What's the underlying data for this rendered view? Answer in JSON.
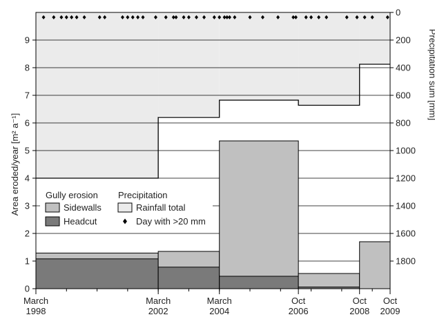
{
  "chart_data": {
    "type": "bar",
    "title": "",
    "x_axis": {
      "ticks": [
        {
          "date": "1998-03",
          "label": [
            "March",
            "1998"
          ]
        },
        {
          "date": "2002-03",
          "label": [
            "March",
            "2002"
          ]
        },
        {
          "date": "2004-03",
          "label": [
            "March",
            "2004"
          ]
        },
        {
          "date": "2006-10",
          "label": [
            "Oct",
            "2006"
          ]
        },
        {
          "date": "2008-10",
          "label": [
            "Oct",
            "2008"
          ]
        },
        {
          "date": "2009-10",
          "label": [
            "Oct",
            "2009"
          ]
        }
      ],
      "range": [
        "1998-03",
        "2009-10"
      ]
    },
    "y_left": {
      "label": "Area eroded/year [m² a⁻¹]",
      "range": [
        0,
        10
      ],
      "ticks": [
        0,
        1,
        2,
        3,
        4,
        5,
        6,
        7,
        8,
        9
      ]
    },
    "y_right": {
      "label": "Precipitation sum [mm]",
      "range": [
        0,
        2000
      ],
      "inverted": true,
      "ticks": [
        0,
        200,
        400,
        600,
        800,
        1000,
        1200,
        1400,
        1600,
        1800
      ]
    },
    "periods": [
      {
        "start": "1998-03",
        "end": "2002-03",
        "headcut": 1.08,
        "total": 1.29
      },
      {
        "start": "2002-03",
        "end": "2004-03",
        "headcut": 0.78,
        "total": 1.35
      },
      {
        "start": "2004-03",
        "end": "2006-10",
        "headcut": 0.45,
        "total": 5.35
      },
      {
        "start": "2006-10",
        "end": "2008-10",
        "headcut": 0.06,
        "total": 0.55
      },
      {
        "start": "2008-10",
        "end": "2009-10",
        "headcut": 0.0,
        "total": 1.7
      }
    ],
    "rainfall_total": [
      {
        "start": "1998-03",
        "end": "2002-03",
        "mm": 1200
      },
      {
        "start": "2002-03",
        "end": "2004-03",
        "mm": 750
      },
      {
        "start": "2004-03",
        "end": "2006-10",
        "mm": 640
      },
      {
        "start": "2006-10",
        "end": "2008-10",
        "mm": 665
      },
      {
        "start": "2008-10",
        "end": "2009-10",
        "mm": 370
      }
    ],
    "rainfall_line": [
      {
        "start": "1998-03",
        "end": "2002-03",
        "mm": 1200
      },
      {
        "start": "2002-03",
        "end": "2004-03",
        "mm": 760
      },
      {
        "start": "2004-03",
        "end": "2006-10",
        "mm": 635
      },
      {
        "start": "2006-10",
        "end": "2008-10",
        "mm": 672
      },
      {
        "start": "2008-10",
        "end": "2009-10",
        "mm": 375
      }
    ],
    "heavy_rain_days": [
      "1998-06",
      "1998-10",
      "1999-01",
      "1999-03",
      "1999-05",
      "1999-07",
      "1999-10",
      "2000-04",
      "2000-06",
      "2001-01",
      "2001-03",
      "2001-05",
      "2001-07",
      "2001-09",
      "2002-02",
      "2002-06",
      "2002-09",
      "2003-01",
      "2003-03",
      "2003-06",
      "2003-09",
      "2004-01",
      "2004-03",
      "2004-05",
      "2004-07",
      "2004-09",
      "2005-03",
      "2005-08",
      "2006-02",
      "2006-08",
      "2007-01",
      "2007-03",
      "2007-06",
      "2007-09",
      "2008-05",
      "2008-09",
      "2008-12",
      "2009-03",
      "2009-09",
      "2002-10",
      "2006-09",
      "2004-06"
    ],
    "legend": {
      "placement": "bottom-left",
      "gully_title": "Gully erosion",
      "precip_title": "Precipitation",
      "sidewalls": "Sidewalls",
      "headcut": "Headcut",
      "rainfall_total": "Rainfall total",
      "day_20mm": "Day with >20 mm"
    },
    "colors": {
      "sidewalls": "#c0c0c0",
      "headcut": "#7a7a7a",
      "rainfall": "#ebebeb",
      "line": "#000000"
    },
    "grid": true
  }
}
